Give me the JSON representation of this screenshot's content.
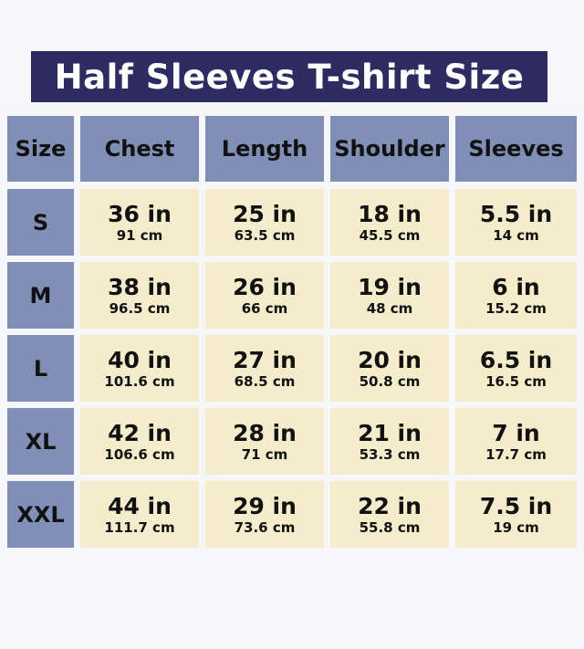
{
  "title": "Half Sleeves T-shirt Size",
  "colors": {
    "title_bg": "#2e2b62",
    "header_bg": "#7f8fb6",
    "cell_bg": "#f4ecca"
  },
  "headers": [
    "Size",
    "Chest",
    "Length",
    "Shoulder",
    "Sleeves"
  ],
  "rows": [
    {
      "size": "S",
      "cells": [
        {
          "in": "36 in",
          "cm": "91 cm"
        },
        {
          "in": "25 in",
          "cm": "63.5 cm"
        },
        {
          "in": "18 in",
          "cm": "45.5 cm"
        },
        {
          "in": "5.5 in",
          "cm": "14 cm"
        }
      ]
    },
    {
      "size": "M",
      "cells": [
        {
          "in": "38 in",
          "cm": "96.5 cm"
        },
        {
          "in": "26 in",
          "cm": "66 cm"
        },
        {
          "in": "19 in",
          "cm": "48 cm"
        },
        {
          "in": "6 in",
          "cm": "15.2 cm"
        }
      ]
    },
    {
      "size": "L",
      "cells": [
        {
          "in": "40 in",
          "cm": "101.6 cm"
        },
        {
          "in": "27 in",
          "cm": "68.5 cm"
        },
        {
          "in": "20 in",
          "cm": "50.8 cm"
        },
        {
          "in": "6.5 in",
          "cm": "16.5 cm"
        }
      ]
    },
    {
      "size": "XL",
      "cells": [
        {
          "in": "42 in",
          "cm": "106.6 cm"
        },
        {
          "in": "28 in",
          "cm": "71 cm"
        },
        {
          "in": "21 in",
          "cm": "53.3 cm"
        },
        {
          "in": "7 in",
          "cm": "17.7 cm"
        }
      ]
    },
    {
      "size": "XXL",
      "cells": [
        {
          "in": "44 in",
          "cm": "111.7 cm"
        },
        {
          "in": "29 in",
          "cm": "73.6 cm"
        },
        {
          "in": "22 in",
          "cm": "55.8 cm"
        },
        {
          "in": "7.5 in",
          "cm": "19 cm"
        }
      ]
    }
  ]
}
